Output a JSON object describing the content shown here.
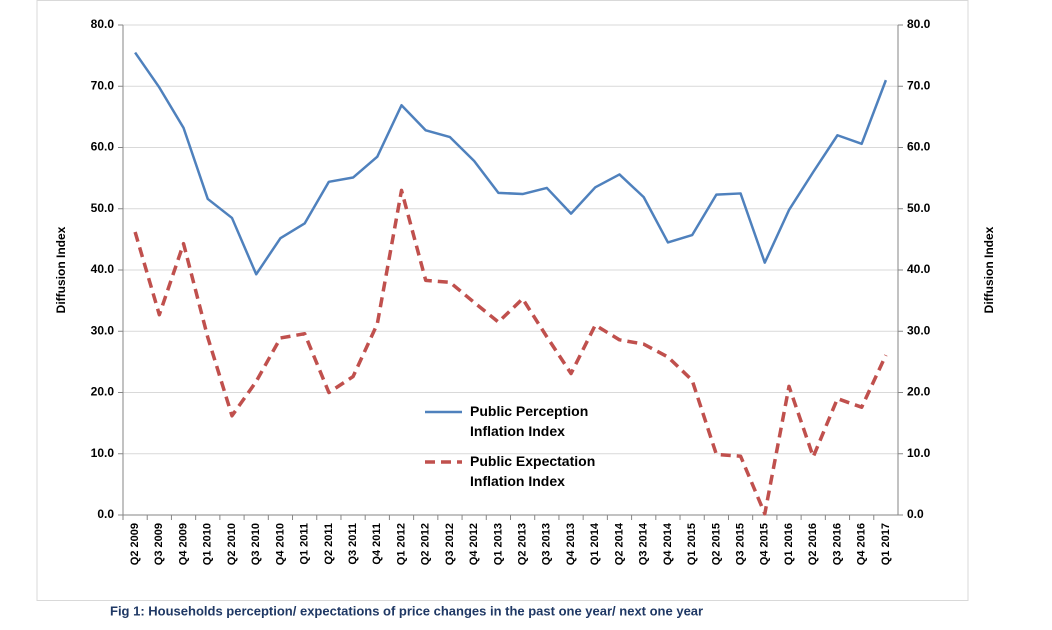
{
  "chart_data": {
    "type": "line",
    "title": "Fig 1:  Households  perception/ expectations of price changes in the past one year/ next one year",
    "ylabel": "Diffusion Index",
    "y2label": "Diffusion Index",
    "categories": [
      "Q2 2009",
      "Q3 2009",
      "Q4 2009",
      "Q1 2010",
      "Q2 2010",
      "Q3 2010",
      "Q4 2010",
      "Q1 2011",
      "Q2 2011",
      "Q3 2011",
      "Q4 2011",
      "Q1 2012",
      "Q2 2012",
      "Q3 2012",
      "Q4 2012",
      "Q1 2013",
      "Q2 2013",
      "Q3 2013",
      "Q4 2013",
      "Q1 2014",
      "Q2 2014",
      "Q3 2014",
      "Q4 2014",
      "Q1 2015",
      "Q2 2015",
      "Q3 2015",
      "Q4 2015",
      "Q1 2016",
      "Q2 2016",
      "Q3 2016",
      "Q4 2016",
      "Q1 2017"
    ],
    "series": [
      {
        "name": "Public Perception Inflation Index",
        "color": "#4f81bd",
        "dash": false,
        "values": [
          75.5,
          69.8,
          63.2,
          51.6,
          48.5,
          39.3,
          45.2,
          47.6,
          54.4,
          55.1,
          58.5,
          66.9,
          62.8,
          61.7,
          57.8,
          52.6,
          52.4,
          53.4,
          49.2,
          53.5,
          55.6,
          51.9,
          44.5,
          45.7,
          52.3,
          52.5,
          41.2,
          49.8,
          56.0,
          62.0,
          60.6,
          71.0
        ]
      },
      {
        "name": "Public Expectation Inflation Index",
        "color": "#c0504d",
        "dash": true,
        "values": [
          46.2,
          32.7,
          44.3,
          29.0,
          16.2,
          21.8,
          28.9,
          29.6,
          20.0,
          22.6,
          31.2,
          53.0,
          38.3,
          38.0,
          34.7,
          31.5,
          35.3,
          29.1,
          23.1,
          31.0,
          28.6,
          27.9,
          25.8,
          22.0,
          9.9,
          9.6,
          0.2,
          21.0,
          9.5,
          19.0,
          17.6,
          26.1
        ]
      }
    ],
    "ylim": [
      0,
      80
    ],
    "yticks": [
      {
        "value": 0,
        "label": "0.0"
      },
      {
        "value": 10,
        "label": "10.0"
      },
      {
        "value": 20,
        "label": "20.0"
      },
      {
        "value": 30,
        "label": "30.0"
      },
      {
        "value": 40,
        "label": "40.0"
      },
      {
        "value": 50,
        "label": "50.0"
      },
      {
        "value": 60,
        "label": "60.0"
      },
      {
        "value": 70,
        "label": "70.0"
      },
      {
        "value": 80,
        "label": "80.0"
      }
    ],
    "y2lim": [
      0,
      80
    ],
    "y2ticks": [
      {
        "value": 0,
        "label": "0.0"
      },
      {
        "value": 10,
        "label": "10.0"
      },
      {
        "value": 20,
        "label": "20.0"
      },
      {
        "value": 30,
        "label": "30.0"
      },
      {
        "value": 40,
        "label": "40.0"
      },
      {
        "value": 50,
        "label": "50.0"
      },
      {
        "value": 60,
        "label": "60.0"
      },
      {
        "value": 70,
        "label": "70.0"
      },
      {
        "value": 80,
        "label": "80.0"
      }
    ],
    "grid": true
  }
}
